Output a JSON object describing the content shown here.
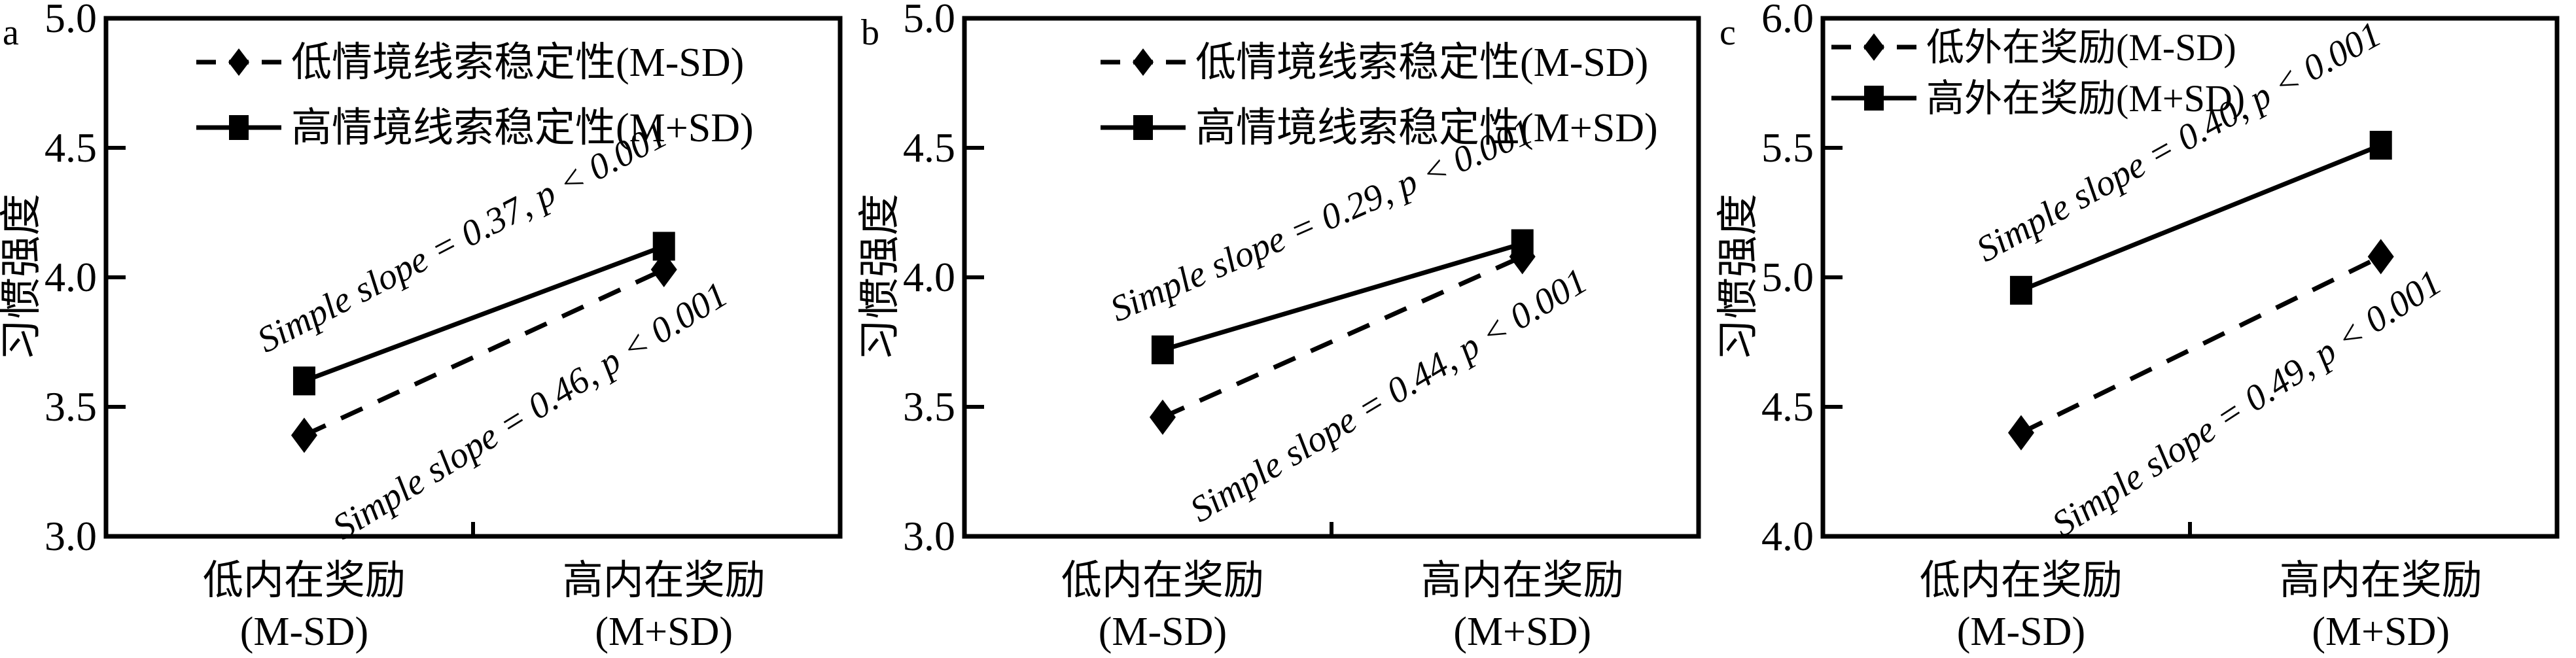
{
  "figure": {
    "background_color": "#ffffff",
    "ink_color": "#000000",
    "description_labels": {
      "ylabel": "习惯强度",
      "x_low_line1": "低内在奖励",
      "x_low_line2": "(M-SD)",
      "x_high_line1": "高内在奖励",
      "x_high_line2": "(M+SD)"
    }
  },
  "chart_data": [
    {
      "type": "line",
      "panel_label": "a",
      "ylabel": "习惯强度",
      "ylim": [
        3.0,
        5.0
      ],
      "yticks": [
        "5.0",
        "4.5",
        "4.0",
        "3.5",
        "3.0"
      ],
      "ytick_values": [
        5.0,
        4.5,
        4.0,
        3.5,
        3.0
      ],
      "x_categories": [
        [
          "低内在奖励",
          "(M-SD)"
        ],
        [
          "高内在奖励",
          "(M+SD)"
        ]
      ],
      "grid": false,
      "legend_position": "top-center-inside",
      "series": [
        {
          "name": "低情境线索稳定性(M-SD)",
          "line_style": "dashed",
          "marker": "diamond",
          "values": [
            3.39,
            4.03
          ],
          "annotation": "Simple slope = 0.46, p < 0.001"
        },
        {
          "name": "高情境线索稳定性(M+SD)",
          "line_style": "solid",
          "marker": "square",
          "values": [
            3.6,
            4.12
          ],
          "annotation": "Simple slope = 0.37, p < 0.001"
        }
      ]
    },
    {
      "type": "line",
      "panel_label": "b",
      "ylabel": "习惯强度",
      "ylim": [
        3.0,
        5.0
      ],
      "yticks": [
        "5.0",
        "4.5",
        "4.0",
        "3.5",
        "3.0"
      ],
      "ytick_values": [
        5.0,
        4.5,
        4.0,
        3.5,
        3.0
      ],
      "x_categories": [
        [
          "低内在奖励",
          "(M-SD)"
        ],
        [
          "高内在奖励",
          "(M+SD)"
        ]
      ],
      "grid": false,
      "legend_position": "top-center-inside",
      "series": [
        {
          "name": "低情境线索稳定性(M-SD)",
          "line_style": "dashed",
          "marker": "diamond",
          "values": [
            3.46,
            4.08
          ],
          "annotation": "Simple slope = 0.44, p < 0.001"
        },
        {
          "name": "高情境线索稳定性(M+SD)",
          "line_style": "solid",
          "marker": "square",
          "values": [
            3.72,
            4.13
          ],
          "annotation": "Simple slope = 0.29, p < 0.001"
        }
      ]
    },
    {
      "type": "line",
      "panel_label": "c",
      "ylabel": "习惯强度",
      "ylim": [
        4.0,
        6.0
      ],
      "yticks": [
        "6.0",
        "5.5",
        "5.0",
        "4.5",
        "4.0"
      ],
      "ytick_values": [
        6.0,
        5.5,
        5.0,
        4.5,
        4.0
      ],
      "x_categories": [
        [
          "低内在奖励",
          "(M-SD)"
        ],
        [
          "高内在奖励",
          "(M+SD)"
        ]
      ],
      "grid": false,
      "legend_position": "top-left-inside",
      "series": [
        {
          "name": "低外在奖励(M-SD)",
          "line_style": "dashed",
          "marker": "diamond",
          "values": [
            4.4,
            5.08
          ],
          "annotation": "Simple slope = 0.49, p < 0.001"
        },
        {
          "name": "高外在奖励(M+SD)",
          "line_style": "solid",
          "marker": "square",
          "values": [
            4.95,
            5.51
          ],
          "annotation": "Simple slope = 0.40, p < 0.001"
        }
      ]
    }
  ]
}
